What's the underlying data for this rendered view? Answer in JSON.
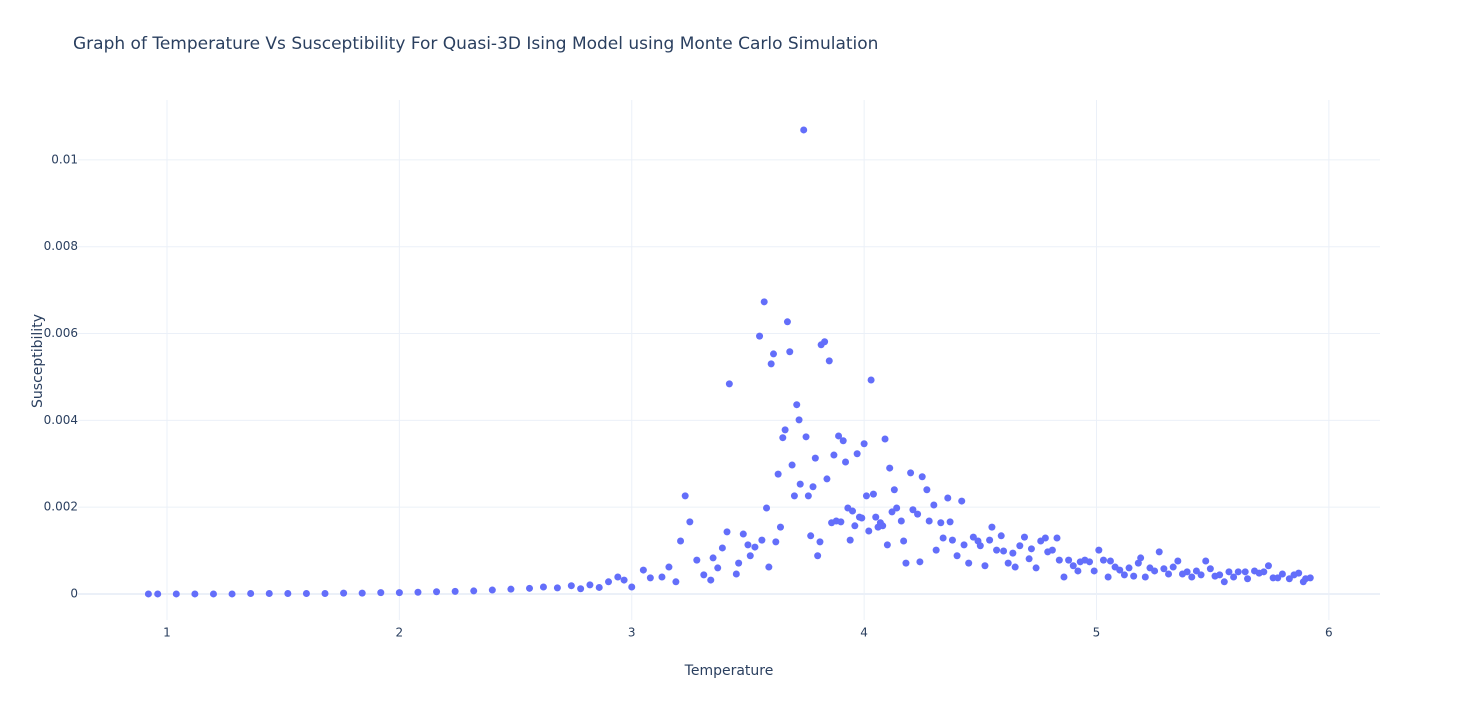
{
  "chart_data": {
    "type": "scatter",
    "title": "Graph of Temperature Vs Susceptibility For Quasi-3D Ising Model using Monte Carlo Simulation",
    "x_label": "Temperature",
    "y_label": "Susceptibility",
    "xlim": [
      0.617,
      6.22
    ],
    "ylim": [
      -0.0006,
      0.01138
    ],
    "xticks": [
      1,
      2,
      3,
      4,
      5,
      6
    ],
    "yticks": [
      0,
      0.002,
      0.004,
      0.006,
      0.008,
      0.01
    ],
    "grid": true,
    "series": [
      {
        "color": "#636efa",
        "x": [
          0.92,
          0.96,
          1.04,
          1.12,
          1.2,
          1.28,
          1.36,
          1.44,
          1.52,
          1.6,
          1.68,
          1.76,
          1.84,
          1.92,
          2.0,
          2.08,
          2.16,
          2.24,
          2.32,
          2.4,
          2.48,
          2.56,
          2.62,
          2.68,
          2.74,
          2.78,
          2.82,
          2.86,
          2.9,
          2.94,
          2.967,
          3.0,
          3.05,
          3.08,
          3.13,
          3.16,
          3.19,
          3.21,
          3.23,
          3.25,
          3.28,
          3.31,
          3.34,
          3.35,
          3.37,
          3.39,
          3.41,
          3.42,
          3.45,
          3.46,
          3.48,
          3.5,
          3.51,
          3.53,
          3.55,
          3.56,
          3.57,
          3.58,
          3.59,
          3.6,
          3.61,
          3.62,
          3.63,
          3.64,
          3.65,
          3.66,
          3.67,
          3.68,
          3.69,
          3.7,
          3.71,
          3.72,
          3.725,
          3.74,
          3.75,
          3.76,
          3.77,
          3.78,
          3.79,
          3.8,
          3.81,
          3.815,
          3.83,
          3.84,
          3.85,
          3.86,
          3.87,
          3.88,
          3.89,
          3.9,
          3.91,
          3.92,
          3.93,
          3.94,
          3.95,
          3.96,
          3.97,
          3.98,
          3.99,
          4.0,
          4.01,
          4.02,
          4.03,
          4.04,
          4.05,
          4.06,
          4.07,
          4.08,
          4.09,
          4.1,
          4.11,
          4.12,
          4.13,
          4.14,
          4.16,
          4.17,
          4.18,
          4.2,
          4.21,
          4.23,
          4.24,
          4.25,
          4.27,
          4.28,
          4.3,
          4.31,
          4.33,
          4.34,
          4.36,
          4.37,
          4.38,
          4.4,
          4.42,
          4.43,
          4.45,
          4.47,
          4.49,
          4.5,
          4.52,
          4.54,
          4.55,
          4.57,
          4.59,
          4.6,
          4.62,
          4.64,
          4.65,
          4.67,
          4.69,
          4.71,
          4.72,
          4.74,
          4.76,
          4.78,
          4.79,
          4.81,
          4.83,
          4.84,
          4.86,
          4.88,
          4.9,
          4.92,
          4.93,
          4.95,
          4.97,
          4.99,
          5.01,
          5.03,
          5.05,
          5.06,
          5.08,
          5.1,
          5.12,
          5.14,
          5.16,
          5.18,
          5.19,
          5.21,
          5.23,
          5.25,
          5.27,
          5.29,
          5.31,
          5.33,
          5.35,
          5.37,
          5.39,
          5.41,
          5.43,
          5.45,
          5.47,
          5.49,
          5.51,
          5.53,
          5.55,
          5.57,
          5.59,
          5.61,
          5.64,
          5.65,
          5.68,
          5.7,
          5.72,
          5.74,
          5.76,
          5.78,
          5.8,
          5.83,
          5.85,
          5.87,
          5.89,
          5.9,
          5.92
        ],
        "values": [
          0,
          0,
          0,
          0,
          0,
          0,
          1e-05,
          1e-05,
          1e-05,
          1e-05,
          1e-05,
          2e-05,
          2e-05,
          3e-05,
          3e-05,
          4e-05,
          5e-05,
          6e-05,
          7e-05,
          9e-05,
          0.00011,
          0.00013,
          0.00016,
          0.00014,
          0.00019,
          0.00012,
          0.00021,
          0.00015,
          0.00028,
          0.00039,
          0.00032,
          0.00016,
          0.00055,
          0.00037,
          0.00039,
          0.00062,
          0.00028,
          0.00122,
          0.00226,
          0.00166,
          0.00078,
          0.00044,
          0.00032,
          0.00083,
          0.0006,
          0.00106,
          0.00143,
          0.00484,
          0.00046,
          0.00071,
          0.00138,
          0.00113,
          0.00088,
          0.00108,
          0.00594,
          0.00124,
          0.00673,
          0.00198,
          0.00062,
          0.0053,
          0.00553,
          0.0012,
          0.00276,
          0.00154,
          0.0036,
          0.00378,
          0.00627,
          0.00558,
          0.00297,
          0.00226,
          0.00436,
          0.00401,
          0.00253,
          0.01069,
          0.00362,
          0.00226,
          0.00134,
          0.00247,
          0.00313,
          0.00088,
          0.0012,
          0.00574,
          0.00581,
          0.00265,
          0.00537,
          0.00164,
          0.0032,
          0.00168,
          0.00364,
          0.00166,
          0.00353,
          0.00304,
          0.00198,
          0.00124,
          0.00191,
          0.00157,
          0.00323,
          0.00177,
          0.00175,
          0.00346,
          0.00226,
          0.00145,
          0.00493,
          0.0023,
          0.00177,
          0.00154,
          0.00164,
          0.00157,
          0.00357,
          0.00113,
          0.0029,
          0.00189,
          0.0024,
          0.00198,
          0.00168,
          0.00122,
          0.00071,
          0.00279,
          0.00194,
          0.00184,
          0.00074,
          0.0027,
          0.0024,
          0.00168,
          0.00205,
          0.00101,
          0.00164,
          0.00129,
          0.00221,
          0.00166,
          0.00124,
          0.00088,
          0.00214,
          0.00113,
          0.00071,
          0.00131,
          0.00122,
          0.00111,
          0.00065,
          0.00124,
          0.00154,
          0.00101,
          0.00134,
          0.00099,
          0.00071,
          0.00094,
          0.00062,
          0.00111,
          0.00131,
          0.00081,
          0.00104,
          0.0006,
          0.00122,
          0.00129,
          0.00097,
          0.00101,
          0.00129,
          0.00078,
          0.00039,
          0.00078,
          0.00065,
          0.00053,
          0.00074,
          0.00078,
          0.00074,
          0.00053,
          0.00101,
          0.00078,
          0.00039,
          0.00076,
          0.00062,
          0.00055,
          0.00044,
          0.0006,
          0.00041,
          0.00071,
          0.00083,
          0.00039,
          0.0006,
          0.00053,
          0.00097,
          0.00058,
          0.00046,
          0.00062,
          0.00076,
          0.00046,
          0.00051,
          0.00039,
          0.00053,
          0.00044,
          0.00076,
          0.00058,
          0.00041,
          0.00044,
          0.00028,
          0.00051,
          0.00039,
          0.00051,
          0.00051,
          0.00035,
          0.00053,
          0.00048,
          0.00051,
          0.00065,
          0.00037,
          0.00037,
          0.00046,
          0.00035,
          0.00044,
          0.00048,
          0.00028,
          0.00035,
          0.00037
        ]
      }
    ]
  }
}
